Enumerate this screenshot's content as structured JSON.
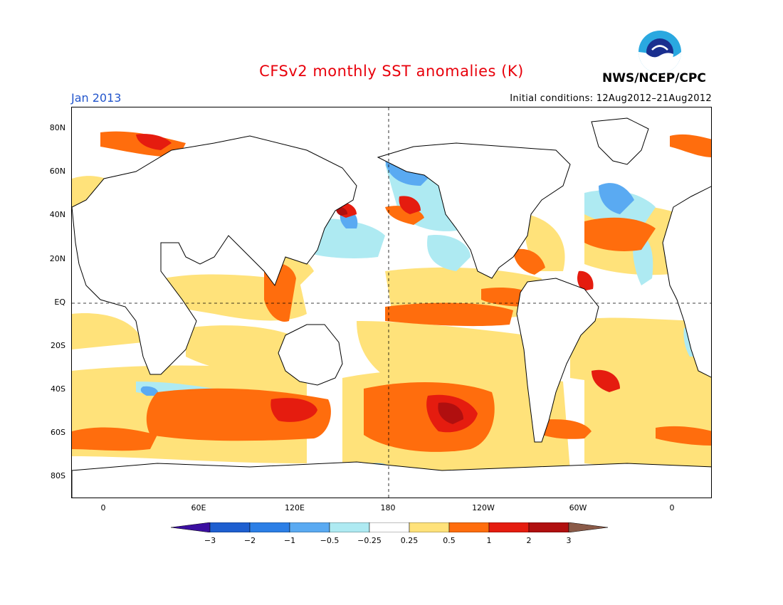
{
  "header": {
    "title": "CFSv2 monthly SST anomalies (K)",
    "month": "Jan 2013",
    "initial_conditions": "Initial conditions: 12Aug2012–21Aug2012",
    "agency": "NWS/NCEP/CPC",
    "logo_icon": "noaa-logo-icon"
  },
  "map": {
    "projection": "equirectangular",
    "lon_range": [
      -20,
      380
    ],
    "lat_range": [
      -90,
      90
    ],
    "gridlines": "dashed",
    "lat_labels": [
      "80N",
      "60N",
      "40N",
      "20N",
      "EQ",
      "20S",
      "40S",
      "60S",
      "80S"
    ],
    "lon_labels": [
      "0",
      "60E",
      "120E",
      "180",
      "120W",
      "60W",
      "0"
    ]
  },
  "colorbar": {
    "labels": [
      "−3",
      "−2",
      "−1",
      "−0.5",
      "−0.25",
      "0.25",
      "0.5",
      "1",
      "2",
      "3"
    ],
    "colors": [
      "#3b0fa0",
      "#1e5fd0",
      "#2c7fe6",
      "#5aaaf2",
      "#aeeaf2",
      "#ffffff",
      "#ffe27a",
      "#ff6d0d",
      "#e51c0f",
      "#b00f0f",
      "#8a5a48"
    ]
  }
}
